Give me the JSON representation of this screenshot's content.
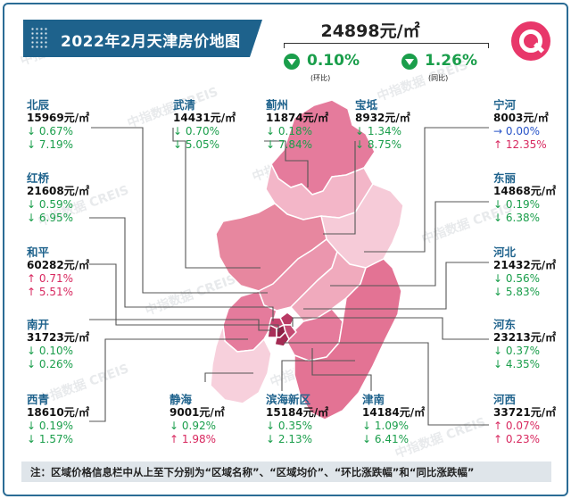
{
  "title": "2022年2月天津房价地图",
  "city_average": {
    "price": "24898元/㎡",
    "mom": {
      "value": "0.10%",
      "label": "(环比)",
      "direction": "down"
    },
    "yoy": {
      "value": "1.26%",
      "label": "(同比)",
      "direction": "down"
    }
  },
  "watermark_text": "中指数据 CREIS",
  "colors": {
    "title_bg": "#1e628c",
    "up": "#d8285f",
    "down": "#1a9e4b",
    "flat": "#2a55c8",
    "logo": "#e8376a"
  },
  "districts": [
    {
      "name": "北辰",
      "price": "15969元/㎡",
      "mom": {
        "arrow": "↓",
        "value": "0.67%",
        "dir": "down"
      },
      "yoy": {
        "arrow": "↓",
        "value": "7.19%",
        "dir": "down"
      }
    },
    {
      "name": "武清",
      "price": "14431元/㎡",
      "mom": {
        "arrow": "↓",
        "value": "0.70%",
        "dir": "down"
      },
      "yoy": {
        "arrow": "↓",
        "value": "5.05%",
        "dir": "down"
      }
    },
    {
      "name": "蓟州",
      "price": "11874元/㎡",
      "mom": {
        "arrow": "↓",
        "value": "0.18%",
        "dir": "down"
      },
      "yoy": {
        "arrow": "↓",
        "value": "7.84%",
        "dir": "down"
      }
    },
    {
      "name": "宝坻",
      "price": "8932元/㎡",
      "mom": {
        "arrow": "↓",
        "value": "1.34%",
        "dir": "down"
      },
      "yoy": {
        "arrow": "↓",
        "value": "8.75%",
        "dir": "down"
      }
    },
    {
      "name": "宁河",
      "price": "8003元/㎡",
      "mom": {
        "arrow": "→",
        "value": "0.00%",
        "dir": "flat"
      },
      "yoy": {
        "arrow": "↑",
        "value": "12.35%",
        "dir": "up"
      }
    },
    {
      "name": "红桥",
      "price": "21608元/㎡",
      "mom": {
        "arrow": "↓",
        "value": "0.59%",
        "dir": "down"
      },
      "yoy": {
        "arrow": "↓",
        "value": "6.95%",
        "dir": "down"
      }
    },
    {
      "name": "东丽",
      "price": "14868元/㎡",
      "mom": {
        "arrow": "↓",
        "value": "0.19%",
        "dir": "down"
      },
      "yoy": {
        "arrow": "↓",
        "value": "6.38%",
        "dir": "down"
      }
    },
    {
      "name": "和平",
      "price": "60282元/㎡",
      "mom": {
        "arrow": "↑",
        "value": "0.71%",
        "dir": "up"
      },
      "yoy": {
        "arrow": "↑",
        "value": "5.51%",
        "dir": "up"
      }
    },
    {
      "name": "河北",
      "price": "21432元/㎡",
      "mom": {
        "arrow": "↓",
        "value": "0.56%",
        "dir": "down"
      },
      "yoy": {
        "arrow": "↓",
        "value": "5.83%",
        "dir": "down"
      }
    },
    {
      "name": "南开",
      "price": "31723元/㎡",
      "mom": {
        "arrow": "↓",
        "value": "0.10%",
        "dir": "down"
      },
      "yoy": {
        "arrow": "↓",
        "value": "0.26%",
        "dir": "down"
      }
    },
    {
      "name": "河东",
      "price": "23213元/㎡",
      "mom": {
        "arrow": "↓",
        "value": "0.37%",
        "dir": "down"
      },
      "yoy": {
        "arrow": "↓",
        "value": "4.35%",
        "dir": "down"
      }
    },
    {
      "name": "西青",
      "price": "18610元/㎡",
      "mom": {
        "arrow": "↓",
        "value": "0.19%",
        "dir": "down"
      },
      "yoy": {
        "arrow": "↓",
        "value": "1.57%",
        "dir": "down"
      }
    },
    {
      "name": "静海",
      "price": "9001元/㎡",
      "mom": {
        "arrow": "↓",
        "value": "0.92%",
        "dir": "down"
      },
      "yoy": {
        "arrow": "↑",
        "value": "1.98%",
        "dir": "up"
      }
    },
    {
      "name": "滨海新区",
      "price": "15184元/㎡",
      "mom": {
        "arrow": "↓",
        "value": "0.35%",
        "dir": "down"
      },
      "yoy": {
        "arrow": "↓",
        "value": "2.13%",
        "dir": "down"
      }
    },
    {
      "name": "津南",
      "price": "14184元/㎡",
      "mom": {
        "arrow": "↓",
        "value": "1.09%",
        "dir": "down"
      },
      "yoy": {
        "arrow": "↓",
        "value": "6.41%",
        "dir": "down"
      }
    },
    {
      "name": "河西",
      "price": "33721元/㎡",
      "mom": {
        "arrow": "↑",
        "value": "0.07%",
        "dir": "up"
      },
      "yoy": {
        "arrow": "↑",
        "value": "0.23%",
        "dir": "up"
      }
    }
  ],
  "note": "注：区域价格信息栏中从上至下分别为“区域名称”、“区域均价”、“环比涨跌幅”和“同比涨跌幅”"
}
